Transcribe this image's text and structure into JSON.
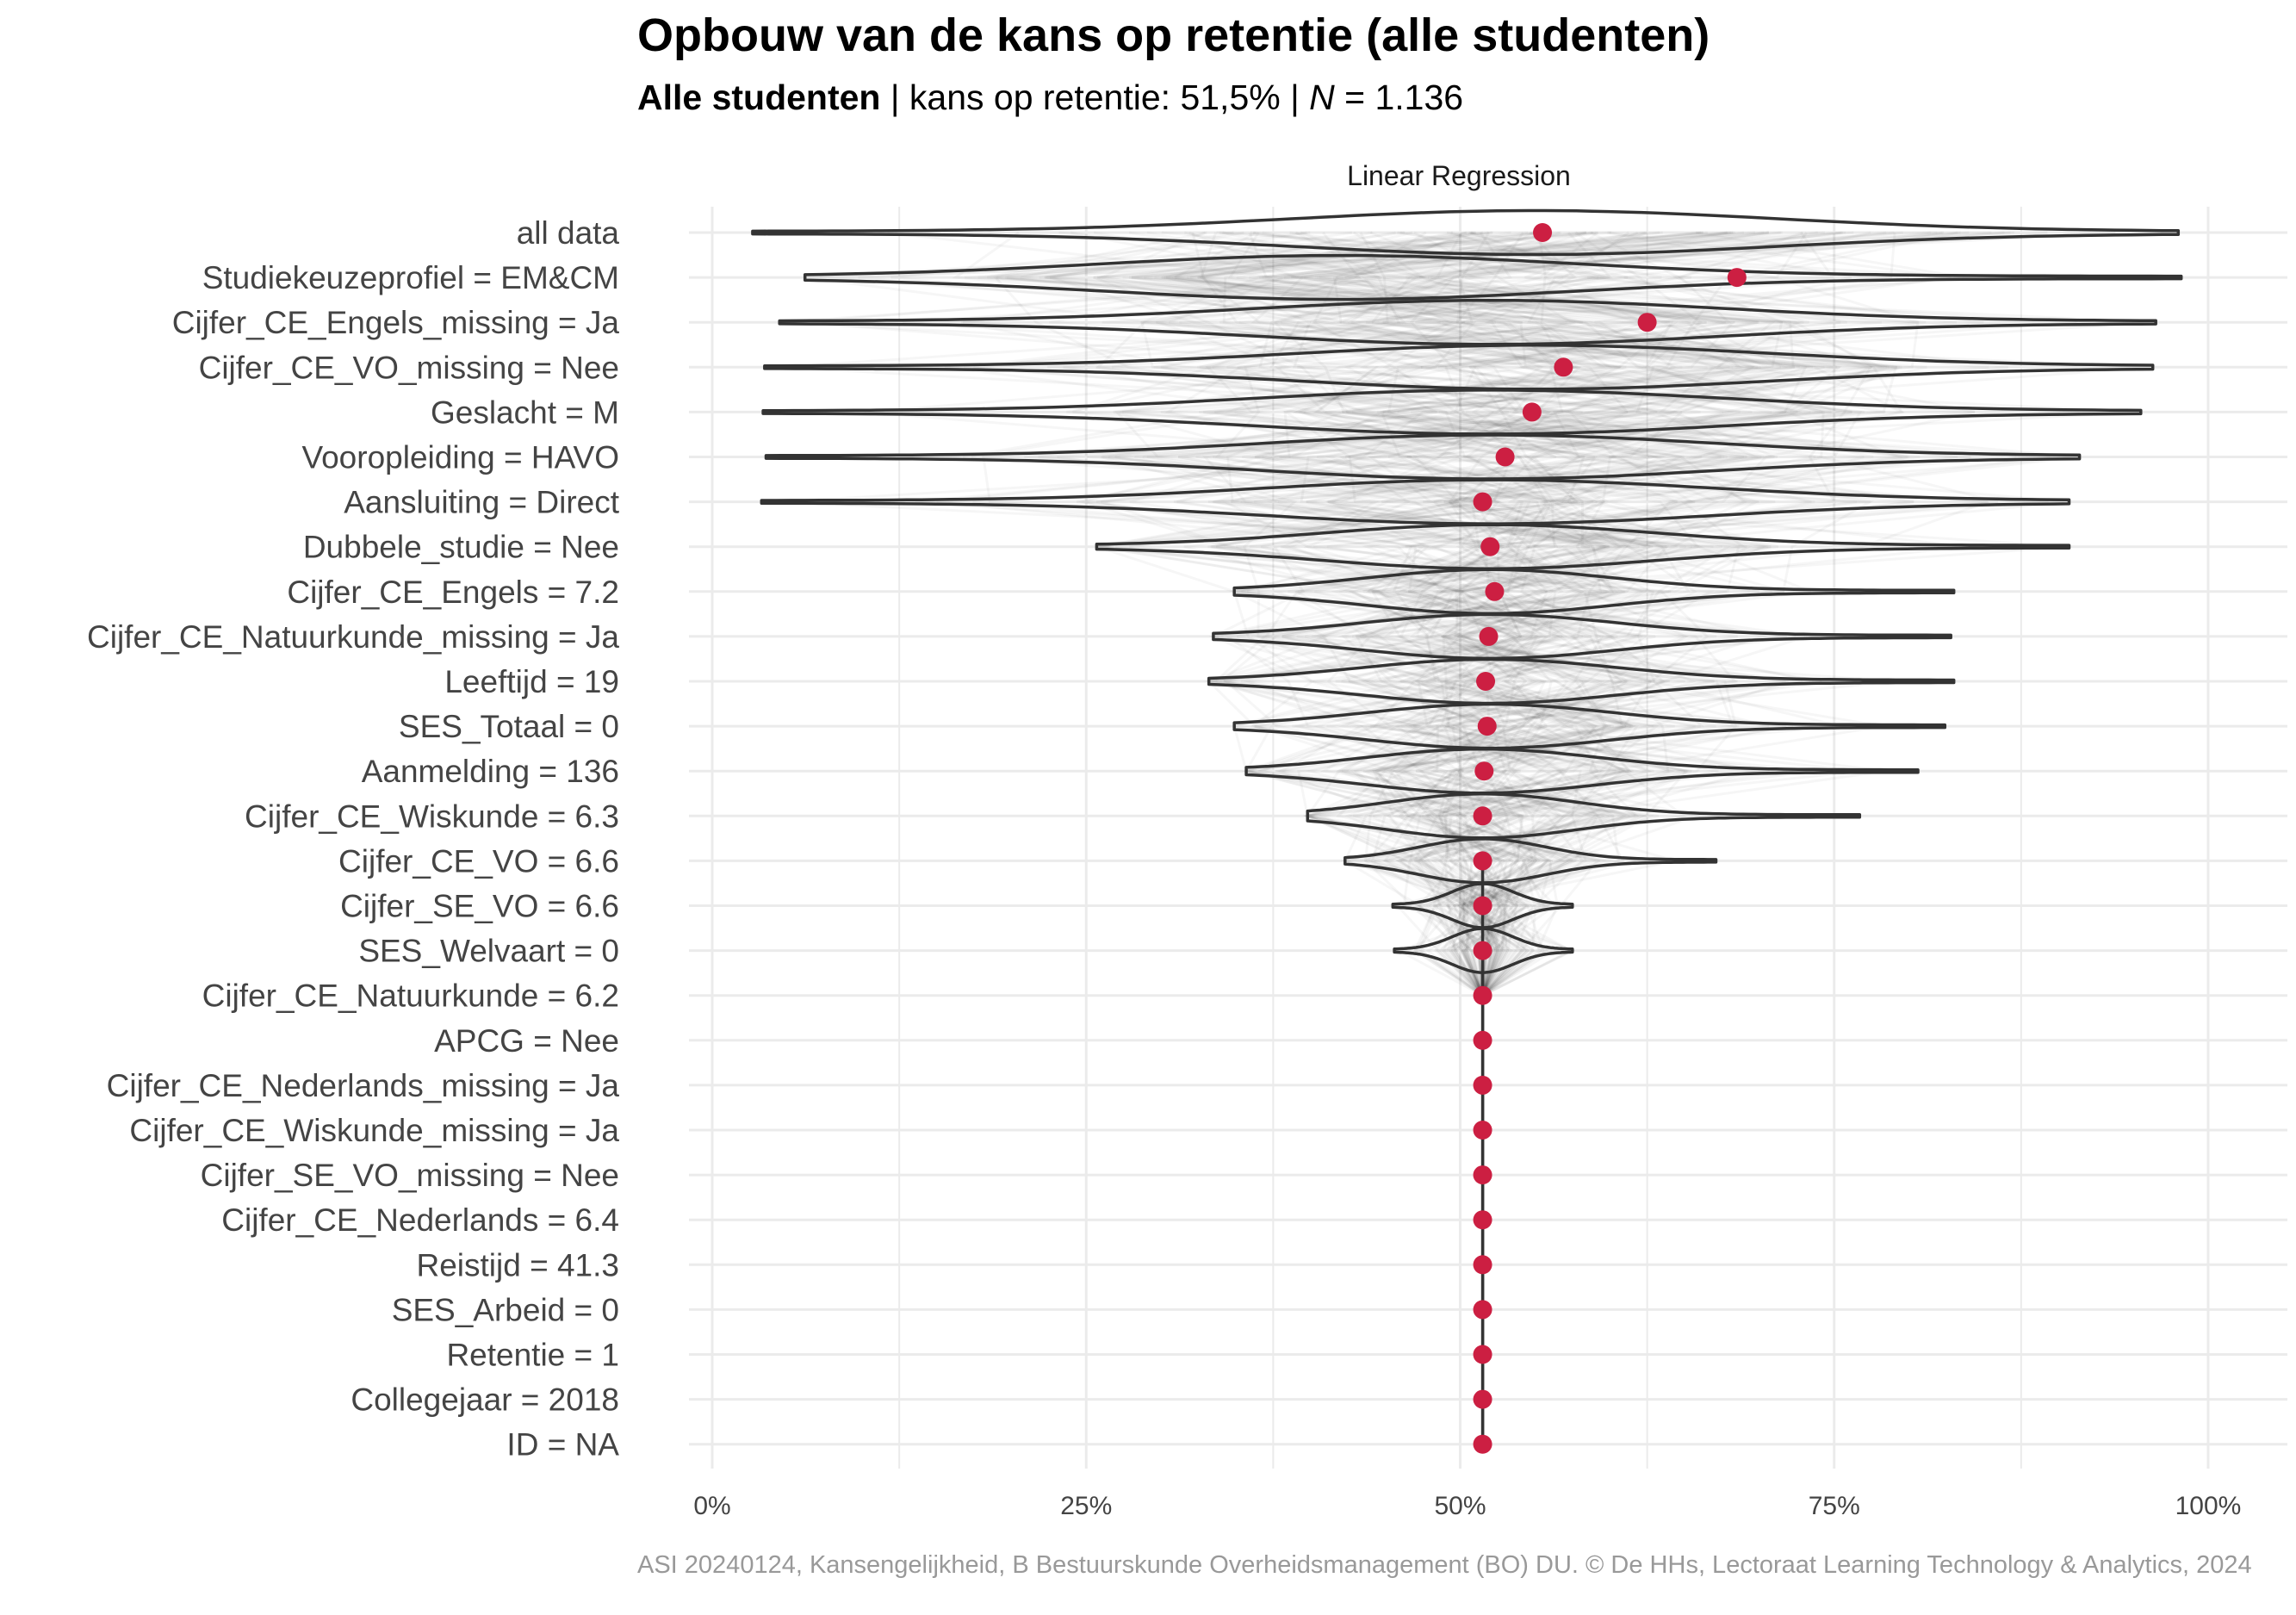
{
  "title": "Opbouw van de kans op retentie (alle studenten)",
  "subtitle": {
    "group": "Alle studenten",
    "sep1": " | kans op retentie: ",
    "probability": "51,5%",
    "sep2": " | ",
    "n_label": "N",
    "n_value": " = 1.136"
  },
  "caption": "ASI 20240124, Kansengelijkheid, B Bestuurskunde Overheidsmanagement (BO) DU. © De HHs, Lectoraat Learning Technology & Analytics, 2024",
  "colors": {
    "point": "#cc1f42",
    "violin": "#333333",
    "grid": "#ebebeb",
    "paths": "#000000"
  },
  "chart_data": {
    "type": "violin",
    "facet": "Linear Regression",
    "xlim": [
      0,
      1
    ],
    "x_ticks": [
      0,
      0.25,
      0.5,
      0.75,
      1
    ],
    "x_tick_labels": [
      "0%",
      "25%",
      "50%",
      "75%",
      "100%"
    ],
    "grid": true,
    "categories": [
      "all data",
      "Studiekeuzeprofiel = EM&CM",
      "Cijfer_CE_Engels_missing = Ja",
      "Cijfer_CE_VO_missing = Nee",
      "Geslacht = M",
      "Vooropleiding = HAVO",
      "Aansluiting = Direct",
      "Dubbele_studie = Nee",
      "Cijfer_CE_Engels = 7.2",
      "Cijfer_CE_Natuurkunde_missing = Ja",
      "Leeftijd = 19",
      "SES_Totaal = 0",
      "Aanmelding = 136",
      "Cijfer_CE_Wiskunde = 6.3",
      "Cijfer_CE_VO = 6.6",
      "Cijfer_SE_VO = 6.6",
      "SES_Welvaart = 0",
      "Cijfer_CE_Natuurkunde = 6.2",
      "APCG = Nee",
      "Cijfer_CE_Nederlands_missing = Ja",
      "Cijfer_CE_Wiskunde_missing = Ja",
      "Cijfer_SE_VO_missing = Nee",
      "Cijfer_CE_Nederlands = 6.4",
      "Reistijd = 41.3",
      "SES_Arbeid = 0",
      "Retentie = 1",
      "Collegejaar = 2018",
      "ID = NA"
    ],
    "point_values": [
      0.555,
      0.685,
      0.625,
      0.569,
      0.548,
      0.53,
      0.515,
      0.52,
      0.523,
      0.519,
      0.517,
      0.518,
      0.516,
      0.515,
      0.515,
      0.515,
      0.515,
      0.515,
      0.515,
      0.515,
      0.515,
      0.515,
      0.515,
      0.515,
      0.515,
      0.515,
      0.515,
      0.515
    ],
    "violin_range": [
      [
        0.027,
        0.98
      ],
      [
        0.062,
        0.982
      ],
      [
        0.045,
        0.965
      ],
      [
        0.035,
        0.963
      ],
      [
        0.034,
        0.955
      ],
      [
        0.036,
        0.914
      ],
      [
        0.033,
        0.907
      ],
      [
        0.257,
        0.907
      ],
      [
        0.349,
        0.83
      ],
      [
        0.335,
        0.828
      ],
      [
        0.332,
        0.83
      ],
      [
        0.349,
        0.824
      ],
      [
        0.357,
        0.806
      ],
      [
        0.398,
        0.767
      ],
      [
        0.423,
        0.671
      ],
      [
        0.455,
        0.575
      ],
      [
        0.456,
        0.575
      ],
      [
        0.515,
        0.515
      ],
      [
        0.515,
        0.515
      ],
      [
        0.515,
        0.515
      ],
      [
        0.515,
        0.515
      ],
      [
        0.515,
        0.515
      ],
      [
        0.515,
        0.515
      ],
      [
        0.515,
        0.515
      ],
      [
        0.515,
        0.515
      ],
      [
        0.515,
        0.515
      ],
      [
        0.515,
        0.515
      ],
      [
        0.515,
        0.515
      ]
    ],
    "violin_mode": [
      0.55,
      0.42,
      0.52,
      0.55,
      0.52,
      0.52,
      0.52,
      0.52,
      0.52,
      0.52,
      0.52,
      0.52,
      0.515,
      0.515,
      0.515,
      0.515,
      0.515,
      0.515,
      0.515,
      0.515,
      0.515,
      0.515,
      0.515,
      0.515,
      0.515,
      0.515,
      0.515,
      0.515
    ]
  }
}
